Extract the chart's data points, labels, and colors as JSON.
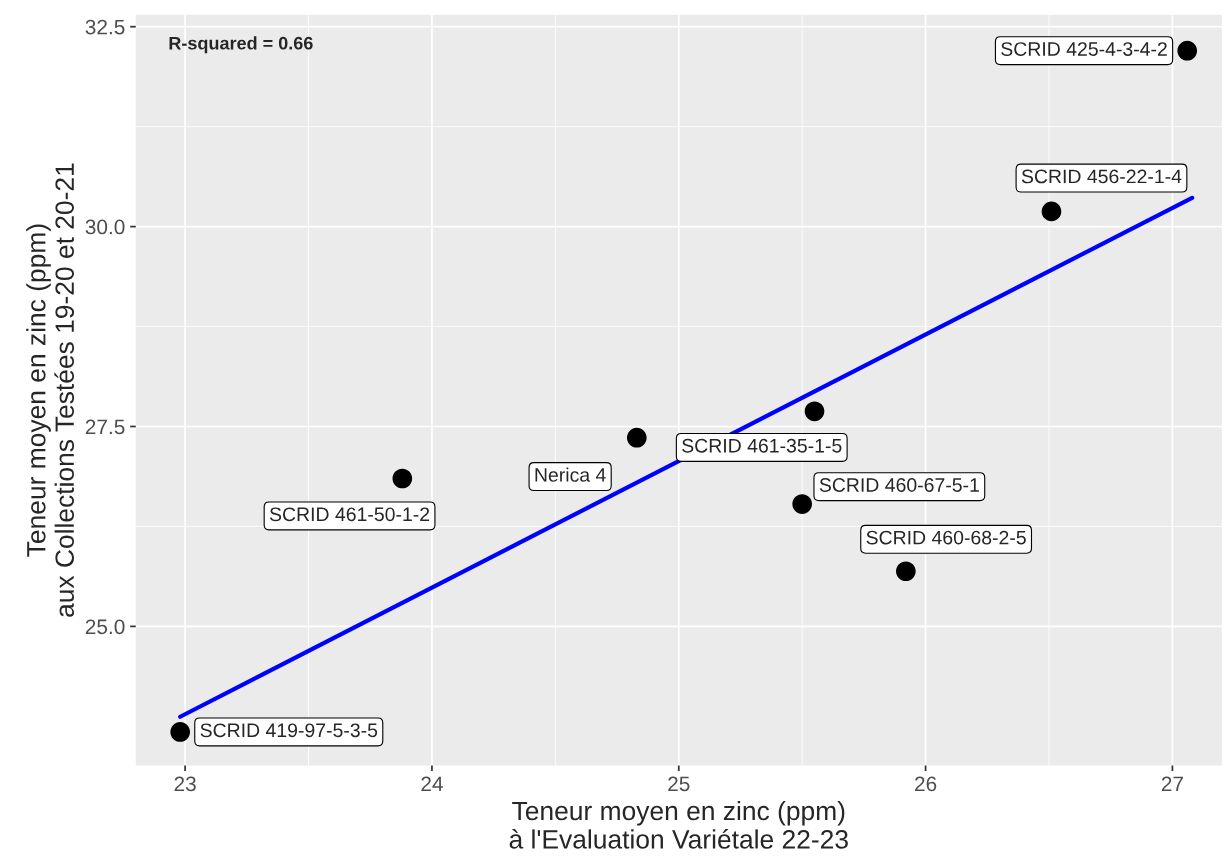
{
  "chart_data": {
    "type": "scatter",
    "xlabel": "Teneur moyen en zinc (ppm)\nà l'Evaluation Variétale 22-23",
    "ylabel": "Teneur moyen en zinc (ppm)\naux Collections Testées 19-20 et 20-21",
    "series": [
      {
        "color": "#000000",
        "marker": "circle",
        "x": [
          22.98,
          23.88,
          24.83,
          25.55,
          25.5,
          25.92,
          26.51,
          27.06
        ],
        "values": [
          23.68,
          26.85,
          27.36,
          27.69,
          26.53,
          25.69,
          30.19,
          32.2
        ]
      },
      {
        "type": "line",
        "marker": "none",
        "color": "#0000ff",
        "x": [
          22.98,
          27.08
        ],
        "values": [
          23.87,
          30.36
        ]
      }
    ],
    "annotations": [
      "R-squared = 0.66",
      {
        "text": "SCRID 419-97-5-3-5",
        "x": 22.98,
        "y": 23.68
      },
      {
        "text": "SCRID 461-50-1-2",
        "x": 23.88,
        "y": 26.85
      },
      {
        "text": "Nerica 4",
        "x": 24.83,
        "y": 27.36
      },
      {
        "text": "SCRID 461-35-1-5",
        "x": 25.55,
        "y": 27.69
      },
      {
        "text": "SCRID 460-67-5-1",
        "x": 25.5,
        "y": 26.53
      },
      {
        "text": "SCRID 460-68-2-5",
        "x": 25.92,
        "y": 25.69
      },
      {
        "text": "SCRID 456-22-1-4",
        "x": 26.51,
        "y": 30.19
      },
      {
        "text": "SCRID 425-4-3-4-2",
        "x": 27.06,
        "y": 32.2
      }
    ],
    "xlim": [
      22.8,
      27.2
    ],
    "ylim": [
      23.26,
      32.65
    ],
    "xticks": [
      23,
      24,
      25,
      26,
      27
    ],
    "yticks": [
      {
        "value": 25,
        "label": "25.0"
      },
      {
        "value": 27.5,
        "label": "27.5"
      },
      {
        "value": 30,
        "label": "30.0"
      },
      {
        "value": 32.5,
        "label": "32.5"
      }
    ],
    "grid": true,
    "legend": false
  }
}
